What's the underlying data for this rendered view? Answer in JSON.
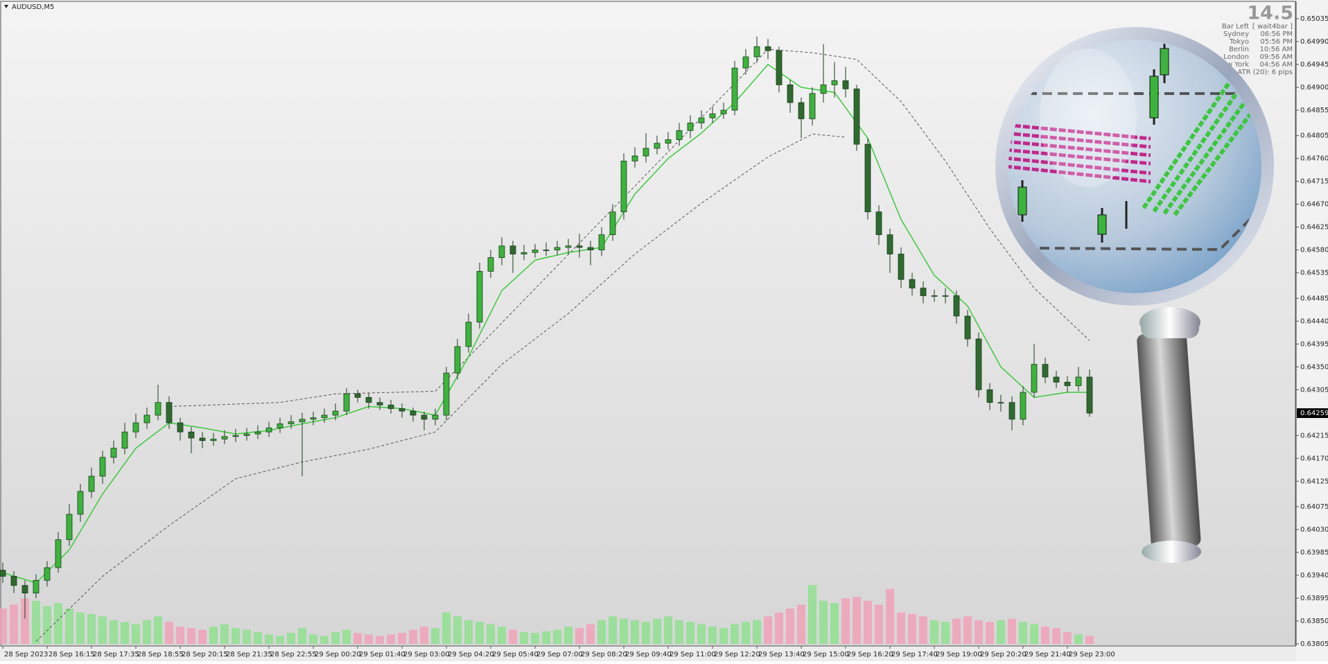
{
  "chart_data": {
    "type": "candlestick",
    "title": "AUDUSD,M5",
    "countdown": 14.5,
    "info_rows": [
      [
        "Bar Left",
        "[ wait4bar ]"
      ],
      [
        "Sydney",
        "06:56 PM"
      ],
      [
        "Tokyo",
        "05:56 PM"
      ],
      [
        "Berlin",
        "10:56 AM"
      ],
      [
        "London",
        "09:56 AM"
      ],
      [
        "New York",
        "04:56 AM"
      ]
    ],
    "atr": "ATR (20): 6 pips",
    "last_price": 0.64259,
    "ylim": [
      0.63805,
      0.65035
    ],
    "yticks": [
      0.65035,
      {
        "value": 0.6499,
        "label": "0.64990"
      },
      0.64945,
      {
        "value": 0.649,
        "label": "0.64900"
      },
      0.64855,
      0.64805,
      {
        "value": 0.6476,
        "label": "0.64760"
      },
      0.64715,
      {
        "value": 0.6467,
        "label": "0.64670"
      },
      0.64625,
      {
        "value": 0.6458,
        "label": "0.64580"
      },
      0.64535,
      0.64485,
      {
        "value": 0.6444,
        "label": "0.64440"
      },
      0.64395,
      {
        "value": 0.6435,
        "label": "0.64350"
      },
      0.64305,
      0.64215,
      {
        "value": 0.6417,
        "label": "0.64170"
      },
      0.64125,
      0.64075,
      {
        "value": 0.6403,
        "label": "0.64030"
      },
      0.63985,
      {
        "value": 0.6394,
        "label": "0.63940"
      },
      0.63895,
      {
        "value": 0.6385,
        "label": "0.63850"
      },
      0.63805
    ],
    "categories": [
      "28 Sep 2023",
      null,
      null,
      null,
      "28 Sep 16:15",
      null,
      null,
      null,
      "28 Sep 17:35",
      null,
      null,
      null,
      "28 Sep 18:55",
      null,
      null,
      null,
      "28 Sep 20:15",
      null,
      null,
      null,
      "28 Sep 21:35",
      null,
      null,
      null,
      "28 Sep 22:55",
      null,
      null,
      null,
      "29 Sep 00:20",
      null,
      null,
      null,
      "29 Sep 01:40",
      null,
      null,
      null,
      "29 Sep 03:00",
      null,
      null,
      null,
      "29 Sep 04:20",
      null,
      null,
      null,
      "29 Sep 05:40",
      null,
      null,
      null,
      "29 Sep 07:00",
      null,
      null,
      null,
      "29 Sep 08:20",
      null,
      null,
      null,
      "29 Sep 09:40",
      null,
      null,
      null,
      "29 Sep 11:00",
      null,
      null,
      null,
      "29 Sep 12:20",
      null,
      null,
      null,
      "29 Sep 13:40",
      null,
      null,
      null,
      "29 Sep 15:00",
      null,
      null,
      null,
      "29 Sep 16:20",
      null,
      null,
      null,
      "29 Sep 17:40",
      null,
      null,
      null,
      "29 Sep 19:00",
      null,
      null,
      null,
      "29 Sep 20:20",
      null,
      null,
      null,
      "29 Sep 21:40",
      null,
      null,
      null,
      "29 Sep 23:00",
      null,
      null
    ],
    "open": [
      0.6395,
      0.63938,
      0.6392,
      0.63905,
      0.6393,
      0.63955,
      0.6401,
      0.6406,
      0.64105,
      0.64135,
      0.64172,
      0.6419,
      0.64222,
      0.6424,
      0.64255,
      0.6428,
      0.6424,
      0.64222,
      0.6421,
      0.64205,
      0.64208,
      0.64213,
      0.64215,
      0.64218,
      0.64222,
      0.6423,
      0.64238,
      0.64242,
      0.64247,
      0.6425,
      0.64255,
      0.64263,
      0.64297,
      0.6429,
      0.6428,
      0.64275,
      0.64268,
      0.64263,
      0.64255,
      0.64247,
      0.64255,
      0.64338,
      0.6439,
      0.64438,
      0.64538,
      0.64565,
      0.64588,
      0.64572,
      0.64575,
      0.6458,
      0.6458,
      0.64585,
      0.64588,
      0.64585,
      0.6458,
      0.6461,
      0.64655,
      0.64755,
      0.64765,
      0.6478,
      0.6479,
      0.64797,
      0.64815,
      0.6483,
      0.6484,
      0.64848,
      0.64855,
      0.64938,
      0.6496,
      0.6498,
      0.64972,
      0.64905,
      0.6487,
      0.64838,
      0.64888,
      0.64905,
      0.64913,
      0.64897,
      0.64788,
      0.64655,
      0.6461,
      0.64572,
      0.64522,
      0.64505,
      0.6449,
      0.6449,
      0.6449,
      0.6445,
      0.64405,
      0.64305,
      0.6428,
      0.6428,
      0.64247,
      0.643,
      0.64355,
      0.6433,
      0.6432,
      0.64313,
      0.6433
    ],
    "high": [
      0.63965,
      0.63948,
      0.6393,
      0.63942,
      0.63968,
      0.64025,
      0.6408,
      0.6412,
      0.64152,
      0.64185,
      0.64205,
      0.6424,
      0.64258,
      0.6427,
      0.64315,
      0.64292,
      0.6425,
      0.64232,
      0.64222,
      0.6422,
      0.64225,
      0.64228,
      0.6423,
      0.64235,
      0.64242,
      0.6425,
      0.64255,
      0.6426,
      0.64262,
      0.64268,
      0.64278,
      0.64308,
      0.64305,
      0.64298,
      0.6429,
      0.64285,
      0.64278,
      0.6427,
      0.64262,
      0.64268,
      0.6435,
      0.64405,
      0.64455,
      0.64555,
      0.6458,
      0.64605,
      0.64598,
      0.6459,
      0.64592,
      0.64595,
      0.64598,
      0.64602,
      0.64612,
      0.64598,
      0.64625,
      0.6467,
      0.6477,
      0.64782,
      0.6481,
      0.64805,
      0.64812,
      0.6483,
      0.64845,
      0.64855,
      0.64862,
      0.6487,
      0.64952,
      0.64975,
      0.65,
      0.64995,
      0.6498,
      0.64915,
      0.6488,
      0.649,
      0.64985,
      0.6495,
      0.6494,
      0.64905,
      0.648,
      0.64668,
      0.64622,
      0.64585,
      0.64535,
      0.64518,
      0.64502,
      0.64505,
      0.645,
      0.64462,
      0.64418,
      0.64318,
      0.64295,
      0.64292,
      0.64312,
      0.64395,
      0.64368,
      0.64342,
      0.64332,
      0.6435,
      0.64345
    ],
    "low": [
      0.63925,
      0.63905,
      0.63855,
      0.63895,
      0.63918,
      0.63945,
      0.63998,
      0.64045,
      0.64092,
      0.6412,
      0.6416,
      0.64178,
      0.6421,
      0.64228,
      0.64245,
      0.64228,
      0.64205,
      0.6418,
      0.6419,
      0.64195,
      0.64198,
      0.64202,
      0.64205,
      0.64208,
      0.64212,
      0.6422,
      0.64228,
      0.64135,
      0.64235,
      0.6424,
      0.64245,
      0.64255,
      0.6428,
      0.64268,
      0.64265,
      0.64258,
      0.6425,
      0.64242,
      0.64225,
      0.64235,
      0.64245,
      0.64325,
      0.64378,
      0.64425,
      0.64525,
      0.6455,
      0.64535,
      0.6456,
      0.64565,
      0.64568,
      0.6457,
      0.64572,
      0.64565,
      0.6455,
      0.64568,
      0.64598,
      0.6464,
      0.64742,
      0.64752,
      0.64768,
      0.64778,
      0.64785,
      0.648,
      0.64818,
      0.6483,
      0.64838,
      0.64845,
      0.64925,
      0.64948,
      0.64955,
      0.6489,
      0.6485,
      0.648,
      0.64825,
      0.6487,
      0.6488,
      0.6488,
      0.64775,
      0.6464,
      0.6459,
      0.64535,
      0.64505,
      0.6449,
      0.64475,
      0.64478,
      0.64475,
      0.64435,
      0.6439,
      0.6429,
      0.64265,
      0.64262,
      0.64225,
      0.64235,
      0.6429,
      0.64318,
      0.64308,
      0.643,
      0.64302,
      0.64252
    ],
    "close": [
      0.63938,
      0.6392,
      0.63905,
      0.6393,
      0.63955,
      0.6401,
      0.6406,
      0.64105,
      0.64135,
      0.64172,
      0.6419,
      0.64222,
      0.6424,
      0.64255,
      0.6428,
      0.6424,
      0.64222,
      0.6421,
      0.64205,
      0.64208,
      0.64213,
      0.64215,
      0.64218,
      0.64222,
      0.6423,
      0.64238,
      0.64242,
      0.64247,
      0.6425,
      0.64255,
      0.64263,
      0.64297,
      0.6429,
      0.6428,
      0.64275,
      0.64268,
      0.64263,
      0.64255,
      0.64247,
      0.64255,
      0.64338,
      0.6439,
      0.64438,
      0.64538,
      0.64565,
      0.64588,
      0.64572,
      0.64575,
      0.6458,
      0.6458,
      0.64585,
      0.64588,
      0.64585,
      0.6458,
      0.6461,
      0.64655,
      0.64755,
      0.64765,
      0.6478,
      0.6479,
      0.64797,
      0.64815,
      0.6483,
      0.6484,
      0.64848,
      0.64855,
      0.64938,
      0.6496,
      0.6498,
      0.64972,
      0.64905,
      0.6487,
      0.64838,
      0.64888,
      0.64905,
      0.64913,
      0.64897,
      0.64788,
      0.64655,
      0.6461,
      0.64572,
      0.64522,
      0.64505,
      0.6449,
      0.6449,
      0.6449,
      0.6445,
      0.64405,
      0.64305,
      0.6428,
      0.6428,
      0.64247,
      0.643,
      0.64355,
      0.6433,
      0.6432,
      0.64313,
      0.6433,
      0.64259
    ],
    "volume": [
      45,
      50,
      58,
      55,
      48,
      52,
      45,
      40,
      38,
      35,
      30,
      28,
      25,
      30,
      35,
      28,
      22,
      20,
      18,
      22,
      25,
      20,
      18,
      15,
      12,
      10,
      14,
      20,
      12,
      10,
      15,
      18,
      14,
      12,
      10,
      12,
      14,
      18,
      22,
      20,
      40,
      35,
      30,
      28,
      25,
      22,
      18,
      15,
      14,
      16,
      18,
      22,
      20,
      25,
      30,
      35,
      32,
      30,
      28,
      32,
      35,
      30,
      28,
      25,
      22,
      20,
      25,
      28,
      30,
      35,
      40,
      45,
      50,
      75,
      55,
      52,
      58,
      60,
      55,
      50,
      70,
      40,
      38,
      35,
      30,
      28,
      32,
      35,
      30,
      28,
      30,
      32,
      28,
      25,
      22,
      20,
      15,
      12,
      10
    ],
    "ma": {
      "color": "#3cc83c",
      "x": [
        0,
        3,
        6,
        9,
        12,
        15,
        18,
        21,
        24,
        27,
        30,
        33,
        36,
        39,
        42,
        45,
        48,
        51,
        54,
        57,
        60,
        63,
        66,
        69,
        72,
        75,
        78,
        81,
        84,
        87,
        90,
        93,
        96,
        98
      ],
      "values": [
        0.63945,
        0.63925,
        0.6399,
        0.641,
        0.6419,
        0.6424,
        0.6423,
        0.64218,
        0.64225,
        0.64238,
        0.6425,
        0.64272,
        0.64268,
        0.64255,
        0.6437,
        0.645,
        0.6456,
        0.64575,
        0.64585,
        0.6469,
        0.6476,
        0.6481,
        0.6487,
        0.64945,
        0.649,
        0.6489,
        0.648,
        0.6464,
        0.6453,
        0.6447,
        0.6435,
        0.6429,
        0.643,
        0.643
      ]
    },
    "upper_band": {
      "x": [
        15,
        25,
        30,
        39,
        69,
        73,
        77,
        81,
        85,
        89,
        93,
        98
      ],
      "values": [
        0.64272,
        0.6428,
        0.64297,
        0.64302,
        0.64975,
        0.64968,
        0.64955,
        0.64872,
        0.64755,
        0.64622,
        0.64505,
        0.64402
      ]
    },
    "lower_band": {
      "x": [
        3,
        9,
        15,
        21,
        27,
        33,
        39,
        45,
        51,
        57,
        63,
        69,
        73,
        76
      ],
      "values": [
        0.6381,
        0.63938,
        0.64038,
        0.6413,
        0.64163,
        0.64188,
        0.64222,
        0.64355,
        0.64455,
        0.64572,
        0.64672,
        0.64763,
        0.64808,
        0.64802
      ]
    }
  }
}
